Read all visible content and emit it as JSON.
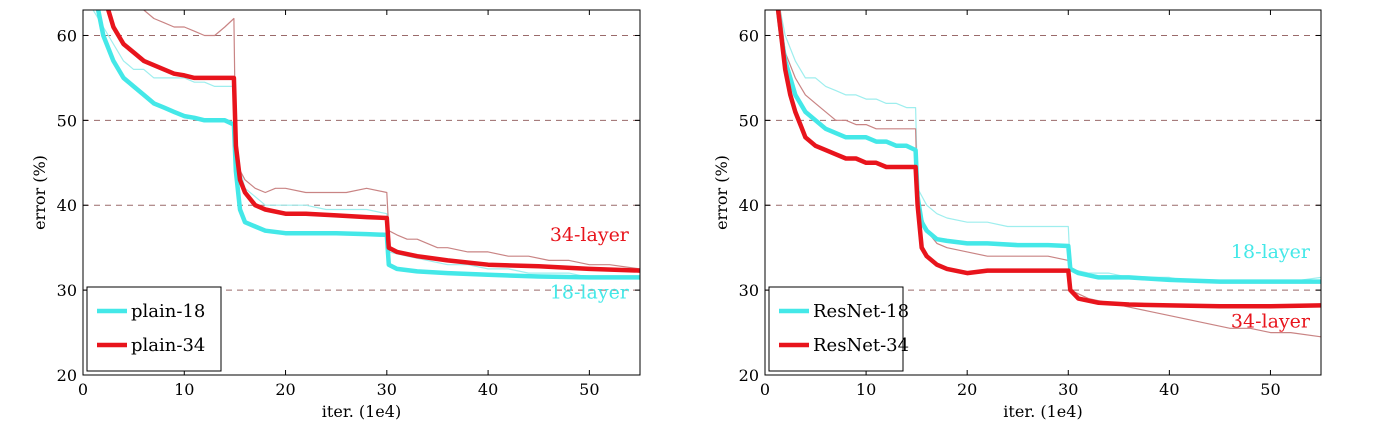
{
  "colors": {
    "cyan": "#44e8e8",
    "red": "#e8141c",
    "cyan_faint": "#9eeeee",
    "red_faint": "#c98484",
    "grid": "#9a6a6a",
    "axis": "#000000"
  },
  "chart_data": [
    {
      "type": "line",
      "xlabel": "iter. (1e4)",
      "ylabel": "error (%)",
      "xlim": [
        0,
        55
      ],
      "ylim": [
        20,
        63
      ],
      "xticks": [
        "0",
        "10",
        "20",
        "30",
        "40",
        "50"
      ],
      "yticks": [
        "20",
        "30",
        "40",
        "50",
        "60"
      ],
      "grid": "dashed horizontal",
      "legend_position": "bottom-left",
      "legend": [
        "plain-18",
        "plain-34"
      ],
      "annotations": [
        {
          "text": "34-layer",
          "color": "red",
          "at": [
            50,
            35.8
          ]
        },
        {
          "text": "18-layer",
          "color": "cyan",
          "at": [
            50,
            29
          ]
        }
      ],
      "series": [
        {
          "name": "plain-18",
          "role": "val",
          "color": "cyan",
          "x": [
            1.5,
            2,
            3,
            4,
            5,
            6,
            7,
            8,
            9,
            10,
            11,
            12,
            13,
            14,
            14.9,
            15.1,
            15.5,
            16,
            17,
            18,
            20,
            22,
            25,
            28,
            30,
            30.2,
            31,
            33,
            36,
            40,
            45,
            50,
            55
          ],
          "y": [
            63,
            60,
            57,
            55,
            54,
            53,
            52,
            51.5,
            51,
            50.5,
            50.3,
            50,
            50,
            50,
            49.5,
            44,
            39.5,
            38,
            37.5,
            37,
            36.7,
            36.7,
            36.7,
            36.6,
            36.5,
            33,
            32.5,
            32.2,
            32,
            31.8,
            31.6,
            31.5,
            31.5
          ]
        },
        {
          "name": "plain-34",
          "role": "val",
          "color": "red",
          "x": [
            2.5,
            3,
            4,
            5,
            6,
            7,
            8,
            9,
            10,
            11,
            12,
            13,
            14,
            14.9,
            15.1,
            15.5,
            16,
            17,
            18,
            20,
            22,
            25,
            28,
            30,
            30.2,
            31,
            33,
            36,
            40,
            45,
            50,
            55
          ],
          "y": [
            63,
            61,
            59,
            58,
            57,
            56.5,
            56,
            55.5,
            55.3,
            55,
            55,
            55,
            55,
            55,
            47,
            43,
            41.5,
            40,
            39.5,
            39,
            39,
            38.8,
            38.6,
            38.5,
            35,
            34.5,
            34,
            33.5,
            33,
            32.8,
            32.5,
            32.3
          ]
        },
        {
          "name": "plain-18 train",
          "role": "train",
          "color": "cyan_faint",
          "x": [
            1,
            2,
            3,
            4,
            5,
            6,
            7,
            8,
            9,
            10,
            11,
            12,
            13,
            14,
            14.9,
            15.1,
            16,
            17,
            18,
            20,
            22,
            24,
            26,
            28,
            30,
            30.2,
            32,
            34,
            36,
            38,
            40,
            42,
            44,
            46,
            48,
            50,
            52,
            55
          ],
          "y": [
            63,
            61,
            59,
            57,
            56,
            56,
            55,
            55,
            55,
            55,
            54.5,
            54.5,
            54,
            54,
            54,
            46,
            42,
            41,
            40,
            40,
            40,
            39.5,
            39.5,
            39.5,
            39,
            34.5,
            34,
            33.5,
            33,
            33,
            32.5,
            32.5,
            32,
            32,
            32,
            31.5,
            31.5,
            31.5
          ]
        },
        {
          "name": "plain-34 train",
          "role": "train",
          "color": "red_faint",
          "x": [
            6,
            7,
            8,
            9,
            10,
            11,
            12,
            13,
            14,
            14.9,
            15.1,
            16,
            17,
            18,
            19,
            20,
            22,
            24,
            26,
            28,
            30,
            30.2,
            31,
            32,
            33,
            34,
            35,
            36,
            38,
            40,
            42,
            44,
            46,
            48,
            50,
            52,
            55
          ],
          "y": [
            63,
            62,
            61.5,
            61,
            61,
            60.5,
            60,
            60,
            61,
            62,
            45,
            43,
            42,
            41.5,
            42,
            42,
            41.5,
            41.5,
            41.5,
            42,
            41.5,
            37,
            36.5,
            36,
            36,
            35.5,
            35,
            35,
            34.5,
            34.5,
            34,
            34,
            33.5,
            33.5,
            33,
            33,
            32.5
          ]
        }
      ]
    },
    {
      "type": "line",
      "xlabel": "iter. (1e4)",
      "ylabel": "error (%)",
      "xlim": [
        0,
        55
      ],
      "ylim": [
        20,
        63
      ],
      "xticks": [
        "0",
        "10",
        "20",
        "30",
        "40",
        "50"
      ],
      "yticks": [
        "20",
        "30",
        "40",
        "50",
        "60"
      ],
      "grid": "dashed horizontal",
      "legend_position": "bottom-left",
      "legend": [
        "ResNet-18",
        "ResNet-34"
      ],
      "annotations": [
        {
          "text": "18-layer",
          "color": "cyan",
          "at": [
            50,
            33.8
          ]
        },
        {
          "text": "34-layer",
          "color": "red",
          "at": [
            50,
            25.6
          ]
        }
      ],
      "series": [
        {
          "name": "ResNet-18",
          "role": "val",
          "color": "cyan",
          "x": [
            1.3,
            1.6,
            2,
            2.5,
            3,
            3.5,
            4,
            5,
            6,
            7,
            8,
            9,
            10,
            11,
            12,
            13,
            14,
            14.9,
            15.1,
            15.5,
            16,
            17,
            18,
            20,
            22,
            25,
            28,
            30,
            30.2,
            31,
            33,
            36,
            40,
            45,
            50,
            55
          ],
          "y": [
            63,
            60,
            57,
            55,
            53,
            52,
            51,
            50,
            49,
            48.5,
            48,
            48,
            48,
            47.5,
            47.5,
            47,
            47,
            46.5,
            41,
            38,
            37,
            36,
            35.8,
            35.5,
            35.5,
            35.3,
            35.3,
            35.2,
            32.5,
            32,
            31.5,
            31.5,
            31.2,
            31,
            31,
            31
          ]
        },
        {
          "name": "ResNet-34",
          "role": "val",
          "color": "red",
          "x": [
            1.3,
            1.6,
            2,
            2.5,
            3,
            3.5,
            4,
            5,
            6,
            7,
            8,
            9,
            10,
            11,
            12,
            13,
            14,
            14.9,
            15.1,
            15.5,
            16,
            17,
            18,
            20,
            22,
            25,
            28,
            30,
            30.2,
            31,
            33,
            36,
            40,
            45,
            50,
            55
          ],
          "y": [
            63,
            60,
            56,
            53,
            51,
            49.5,
            48,
            47,
            46.5,
            46,
            45.5,
            45.5,
            45,
            45,
            44.5,
            44.5,
            44.5,
            44.5,
            40,
            35,
            34,
            33,
            32.5,
            32,
            32.3,
            32.3,
            32.3,
            32.3,
            30,
            29,
            28.5,
            28.3,
            28.2,
            28.1,
            28.1,
            28.2
          ]
        },
        {
          "name": "ResNet-18 train",
          "role": "train",
          "color": "cyan_faint",
          "x": [
            1.5,
            2,
            3,
            4,
            5,
            6,
            7,
            8,
            9,
            10,
            11,
            12,
            13,
            14,
            14.9,
            15.1,
            16,
            17,
            18,
            20,
            22,
            24,
            26,
            28,
            30,
            30.2,
            32,
            34,
            36,
            38,
            40,
            42,
            44,
            46,
            48,
            50,
            52,
            55
          ],
          "y": [
            63,
            60,
            57,
            55,
            55,
            54,
            53.5,
            53,
            53,
            52.5,
            52.5,
            52,
            52,
            51.5,
            51.5,
            42,
            40,
            39,
            38.5,
            38,
            38,
            37.5,
            37.5,
            37.5,
            37.5,
            32.5,
            32,
            32,
            31.5,
            31.5,
            31.5,
            31,
            31,
            31,
            31,
            31,
            31,
            31.5
          ]
        },
        {
          "name": "ResNet-34 train",
          "role": "train",
          "color": "red_faint",
          "x": [
            1.5,
            2,
            3,
            4,
            5,
            6,
            7,
            8,
            9,
            10,
            11,
            12,
            13,
            14,
            14.9,
            15.1,
            16,
            17,
            18,
            20,
            22,
            24,
            26,
            28,
            30,
            30.2,
            32,
            34,
            36,
            38,
            40,
            42,
            44,
            46,
            48,
            50,
            52,
            55
          ],
          "y": [
            63,
            58,
            55,
            53,
            52,
            51,
            50,
            50,
            49.5,
            49.5,
            49,
            49,
            49,
            49,
            49,
            40,
            37,
            35.5,
            35,
            34.5,
            34,
            34,
            34,
            34,
            33.5,
            30,
            29,
            28.5,
            28,
            27.5,
            27,
            26.5,
            26,
            25.5,
            25.5,
            25,
            25,
            24.5
          ]
        }
      ]
    }
  ]
}
